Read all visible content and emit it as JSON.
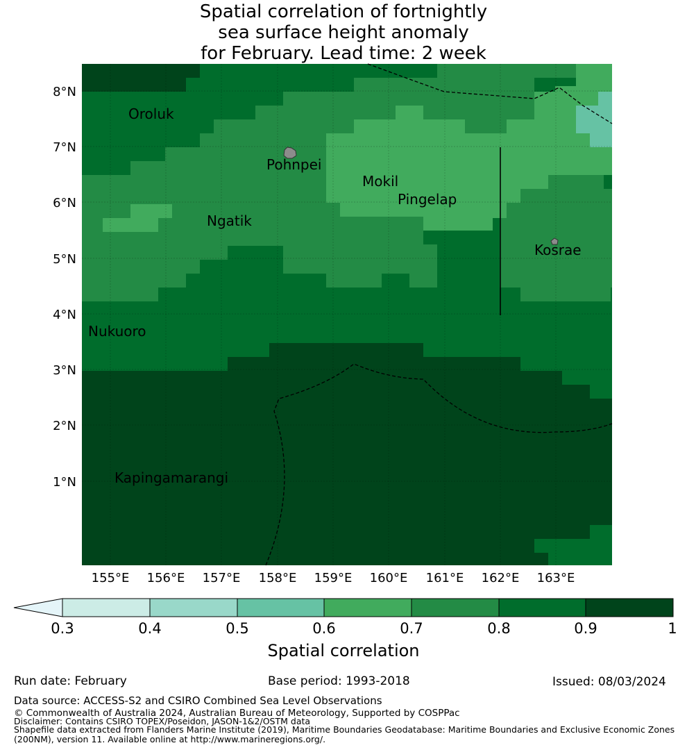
{
  "title": {
    "line1": "Spatial correlation of fortnightly",
    "line2": "sea surface height anomaly",
    "line3": "for February. Lead time: 2 week"
  },
  "map": {
    "lat_labels": [
      "8°N",
      "7°N",
      "6°N",
      "5°N",
      "4°N",
      "3°N",
      "2°N",
      "1°N"
    ],
    "lon_labels": [
      "155°E",
      "156°E",
      "157°E",
      "158°E",
      "159°E",
      "160°E",
      "161°E",
      "162°E",
      "163°E"
    ],
    "places": [
      {
        "name": "Oroluk"
      },
      {
        "name": "Pohnpei"
      },
      {
        "name": "Mokil"
      },
      {
        "name": "Pingelap"
      },
      {
        "name": "Ngatik"
      },
      {
        "name": "Kosrae"
      },
      {
        "name": "Nukuoro"
      },
      {
        "name": "Kapingamarangi"
      }
    ],
    "colors": {
      "c0.9": "#00441b",
      "c0.8": "#006d2c",
      "c0.7": "#238b45",
      "c0.6": "#41ab5d",
      "c0.5": "#66c2a4",
      "c0.4": "#99d8c9",
      "c0.3": "#ccece6",
      "below": "#e5f5f9"
    }
  },
  "colorbar": {
    "ticks": [
      "0.3",
      "0.4",
      "0.5",
      "0.6",
      "0.7",
      "0.8",
      "0.9",
      "1"
    ],
    "label": "Spatial correlation"
  },
  "footer": {
    "run_date": "Run date: February",
    "base_period": "Base period: 1993-2018",
    "issued": "Issued: 08/03/2024",
    "data_source": "Data source: ACCESS-S2 and CSIRO Combined Sea Level Observations",
    "copyright": "© Commonwealth of Australia 2024, Australian Bureau of Meteorology, Supported by COSPPac",
    "disclaimer": "Disclaimer: Contains CSIRO TOPEX/Poseidon, JASON-1&2/OSTM data",
    "shapefile_line1": "Shapefile data extracted from Flanders Marine Institute (2019), Maritime Boundaries Geodatabase: Maritime Boundaries and Exclusive Economic Zones",
    "shapefile_line2": "(200NM), version 11. Available online at http://www.marineregions.org/."
  }
}
